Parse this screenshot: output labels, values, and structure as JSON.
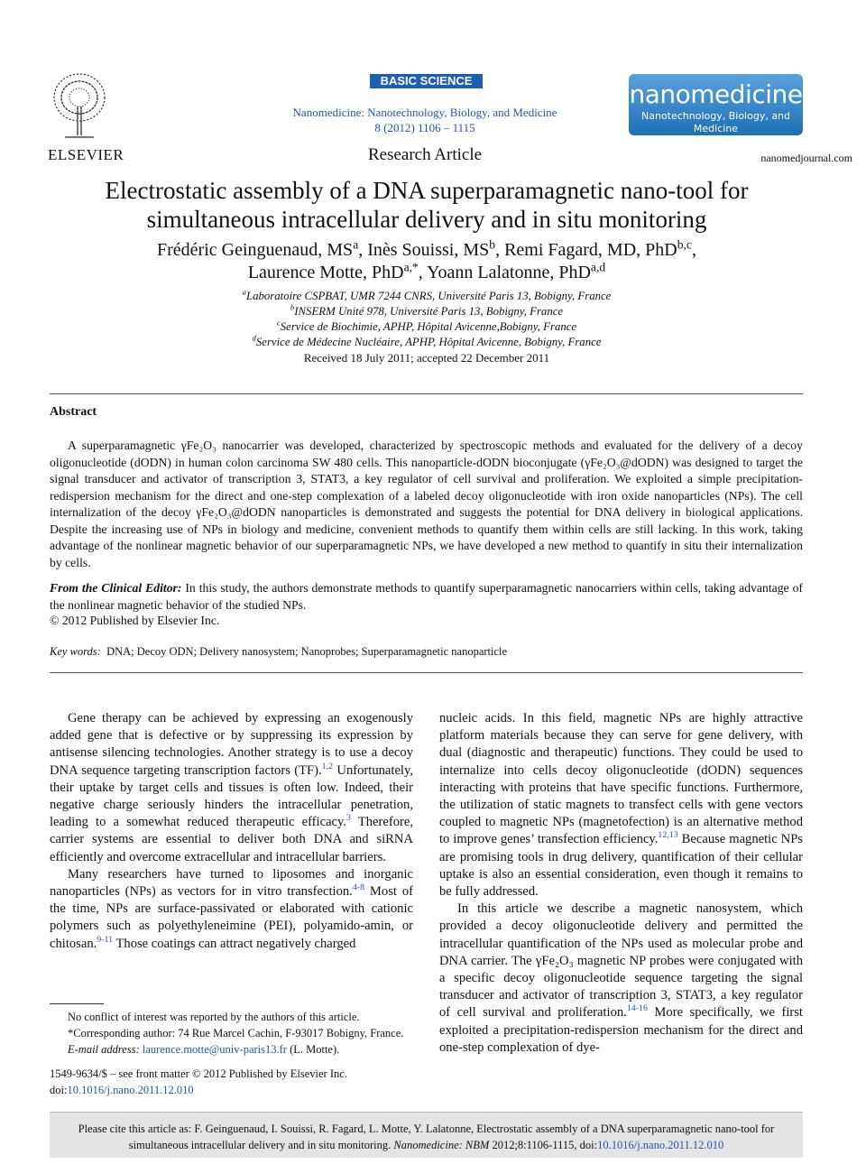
{
  "header": {
    "badge": "BASIC SCIENCE",
    "journal": "Nanomedicine: Nanotechnology, Biology, and Medicine",
    "citation": "8 (2012) 1106 – 1115",
    "article_type": "Research Article",
    "site": "nanomedjournal.com",
    "publisher": "ELSEVIER",
    "logo_title": "nanomedicine",
    "logo_subtitle": "Nanotechnology, Biology, and Medicine"
  },
  "title": "Electrostatic assembly of a DNA superparamagnetic nano-tool for simultaneous intracellular delivery and in situ monitoring",
  "authors": [
    [
      {
        "name": "Frédéric Geinguenaud, MS",
        "sup": "a",
        "after": ", "
      },
      {
        "name": "Inès Souissi, MS",
        "sup": "b",
        "after": ", "
      },
      {
        "name": "Remi Fagard, MD, PhD",
        "sup": "b,c",
        "after": ","
      }
    ],
    [
      {
        "name": "Laurence Motte, PhD",
        "sup": "a,*",
        "after": ", "
      },
      {
        "name": "Yoann Lalatonne, PhD",
        "sup": "a,d"
      }
    ]
  ],
  "affiliations": [
    {
      "sup": "a",
      "text": "Laboratoire CSPBAT, UMR 7244 CNRS, Université Paris 13, Bobigny, France"
    },
    {
      "sup": "b",
      "text": "INSERM Unité 978, Université Paris 13, Bobigny, France"
    },
    {
      "sup": "c",
      "text": "Service de Biochimie, APHP, Hôpital Avicenne,Bobigny, France"
    },
    {
      "sup": "d",
      "text": "Service de Médecine Nucléaire, APHP, Hôpital Avicenne, Bobigny, France"
    }
  ],
  "received": "Received 18 July 2011; accepted 22 December 2011",
  "abstract": {
    "heading": "Abstract",
    "text": "A superparamagnetic γFe₂O₃ nanocarrier was developed, characterized by spectroscopic methods and evaluated for the delivery of a decoy oligonucleotide (dODN) in human colon carcinoma SW 480 cells. This nanoparticle-dODN bioconjugate (γFe₂O₃@dODN) was designed to target the signal transducer and activator of transcription 3, STAT3, a key regulator of cell survival and proliferation. We exploited a simple precipitation-redispersion mechanism for the direct and one-step complexation of a labeled decoy oligonucleotide with iron oxide nanoparticles (NPs). The cell internalization of the decoy γFe₂O₃@dODN nanoparticles is demonstrated and suggests the potential for DNA delivery in biological applications. Despite the increasing use of NPs in biology and medicine, convenient methods to quantify them within cells are still lacking. In this work, taking advantage of the nonlinear magnetic behavior of our superparamagnetic NPs, we have developed a new method to quantify in situ their internalization by cells.",
    "editor_label": "From the Clinical Editor:",
    "editor_text": " In this study, the authors demonstrate methods to quantify superparamagnetic nanocarriers within cells, taking advantage of the nonlinear magnetic behavior of the studied NPs.",
    "copyright": "© 2012 Published by Elsevier Inc.",
    "keywords_label": "Key words:",
    "keywords": "DNA; Decoy ODN; Delivery nanosystem; Nanoprobes; Superparamagnetic nanoparticle"
  },
  "body": {
    "left": [
      [
        "Gene therapy can be achieved by expressing an exogenously added gene that is defective or by suppressing its expression by antisense silencing technologies. Another strategy is to use a decoy DNA sequence targeting transcription factors (TF).",
        "1,2",
        " Unfortunately, their uptake by target cells and tissues is often low. Indeed, their negative charge seriously hinders the intracellular penetration, leading to a somewhat reduced therapeutic efficacy.",
        "3",
        " Therefore, carrier systems are essential to deliver both DNA and siRNA efficiently and overcome extracellular and intracellular barriers."
      ],
      [
        "Many researchers have turned to liposomes and inorganic nanoparticles (NPs) as vectors for in vitro transfection.",
        "4-8",
        " Most of the time, NPs are surface-passivated or elaborated with cationic polymers such as polyethyleneimine (PEI), polyamido-amin, or chitosan.",
        "9-11",
        " Those coatings can attract negatively charged"
      ]
    ],
    "right": [
      [
        "nucleic acids. In this field, magnetic NPs are highly attractive platform materials because they can serve for gene delivery, with dual (diagnostic and therapeutic) functions. They could be used to internalize into cells decoy oligonucleotide (dODN) sequences interacting with proteins that have specific functions. Furthermore, the utilization of static magnets to transfect cells with gene vectors coupled to magnetic NPs (magnetofection) is an alternative method to improve genes’ transfection efficiency.",
        "12,13",
        " Because magnetic NPs are promising tools in drug delivery, quantification of their cellular uptake is also an essential consideration, even though it remains to be fully addressed."
      ],
      [
        "In this article we describe a magnetic nanosystem, which provided a decoy oligonucleotide delivery and permitted the intracellular quantification of the NPs used as molecular probe and DNA carrier. The γFe₂O₃ magnetic NP probes were conjugated with a specific decoy oligonucleotide sequence targeting the signal transducer and activator of transcription 3, STAT3, a key regulator of cell survival and proliferation.",
        "14-16",
        " More specifically, we first exploited a precipitation-redispersion mechanism for the direct and one-step complexation of dye-"
      ]
    ]
  },
  "footnotes": {
    "conflict": "No conflict of interest was reported by the authors of this article.",
    "corresponding": "*Corresponding author: 74 Rue Marcel Cachin, F-93017 Bobigny, France.",
    "email_label": "E-mail address:",
    "email": "laurence.motte@univ-paris13.fr",
    "email_after": " (L. Motte).",
    "front_matter": "1549-9634/$ – see front matter © 2012 Published by Elsevier Inc.",
    "doi_label": "doi:",
    "doi": "10.1016/j.nano.2011.12.010"
  },
  "cite_box": {
    "text": "Please cite this article as: F. Geinguenaud, I. Souissi, R. Fagard, L. Motte, Y. Lalatonne, Electrostatic assembly of a DNA superparamagnetic nano-tool for simultaneous intracellular delivery and in situ monitoring. ",
    "journal": "Nanomedicine: NBM",
    "details": " 2012;8:1106-1115, doi:",
    "doi": "10.1016/j.nano.2011.12.010"
  }
}
